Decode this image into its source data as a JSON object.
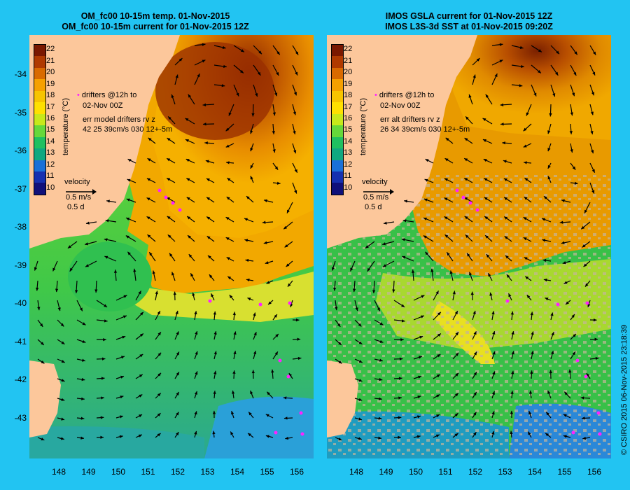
{
  "left": {
    "title_line1": "OM_fc00 10-15m temp. 01-Nov-2015",
    "title_line2": "OM_fc00 10-15m current for 01-Nov-2015 12Z",
    "drifters_line1": "drifters @12h to",
    "drifters_line2": "02-Nov 00Z",
    "err_line1": "err model drifters rv z",
    "err_line2": "42 25 39cm/s 030 12+-5m"
  },
  "right": {
    "title_line1": "IMOS GSLA current for 01-Nov-2015 12Z",
    "title_line2": "IMOS L3S-3d SST at 01-Nov-2015 09:20Z",
    "drifters_line1": "drifters @12h to",
    "drifters_line2": "02-Nov 00Z",
    "err_line1": "err alt drifters rv z",
    "err_line2": "26 34 39cm/s 030 12+-5m"
  },
  "velocity": {
    "label": "velocity",
    "speed": "0.5 m/s",
    "time": "0.5 d"
  },
  "colorbar": {
    "label": "temperature (°C)",
    "ticks": [
      "22",
      "21",
      "20",
      "19",
      "18",
      "17",
      "16",
      "15",
      "14",
      "13",
      "12",
      "11",
      "10"
    ],
    "colors": [
      "#7a1800",
      "#b03a00",
      "#d96a00",
      "#f5a000",
      "#f7c400",
      "#ffe000",
      "#c8e81a",
      "#66d83a",
      "#20c060",
      "#10a880",
      "#1a70d8",
      "#1630b0",
      "#10107a"
    ]
  },
  "axes": {
    "lat_ticks": [
      "-34",
      "-35",
      "-36",
      "-37",
      "-38",
      "-39",
      "-40",
      "-41",
      "-42",
      "-43"
    ],
    "lon_ticks": [
      "148",
      "149",
      "150",
      "151",
      "152",
      "153",
      "154",
      "155",
      "156"
    ]
  },
  "credit": "© CSIRO 2015  06-Nov-2015 23:18:39",
  "colors": {
    "background": "#22c4f2",
    "land": "#fcc79b",
    "drifter": "#ff22ff"
  }
}
